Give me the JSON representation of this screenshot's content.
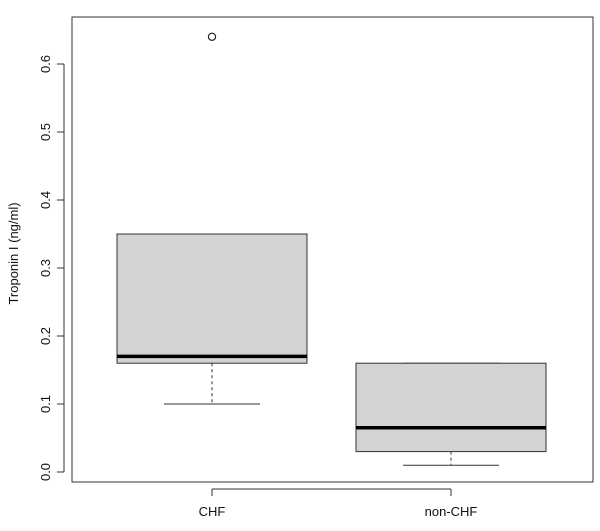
{
  "chart_data": {
    "type": "boxplot",
    "ylabel": "Troponin I (ng/ml)",
    "xlabel": "",
    "title": "",
    "ylim": [
      0,
      0.6
    ],
    "y_ticks": [
      "0.0",
      "0.1",
      "0.2",
      "0.3",
      "0.4",
      "0.5",
      "0.6"
    ],
    "categories": [
      "CHF",
      "non-CHF"
    ],
    "boxes": [
      {
        "name": "CHF",
        "whisker_low": 0.1,
        "q1": 0.16,
        "median": 0.17,
        "q3": 0.35,
        "whisker_high": 0.35,
        "outliers": [
          0.64
        ]
      },
      {
        "name": "non-CHF",
        "whisker_low": 0.01,
        "q1": 0.03,
        "median": 0.065,
        "q3": 0.16,
        "whisker_high": 0.16,
        "outliers": []
      }
    ],
    "box_fill": "#d3d3d3",
    "grid": false
  }
}
